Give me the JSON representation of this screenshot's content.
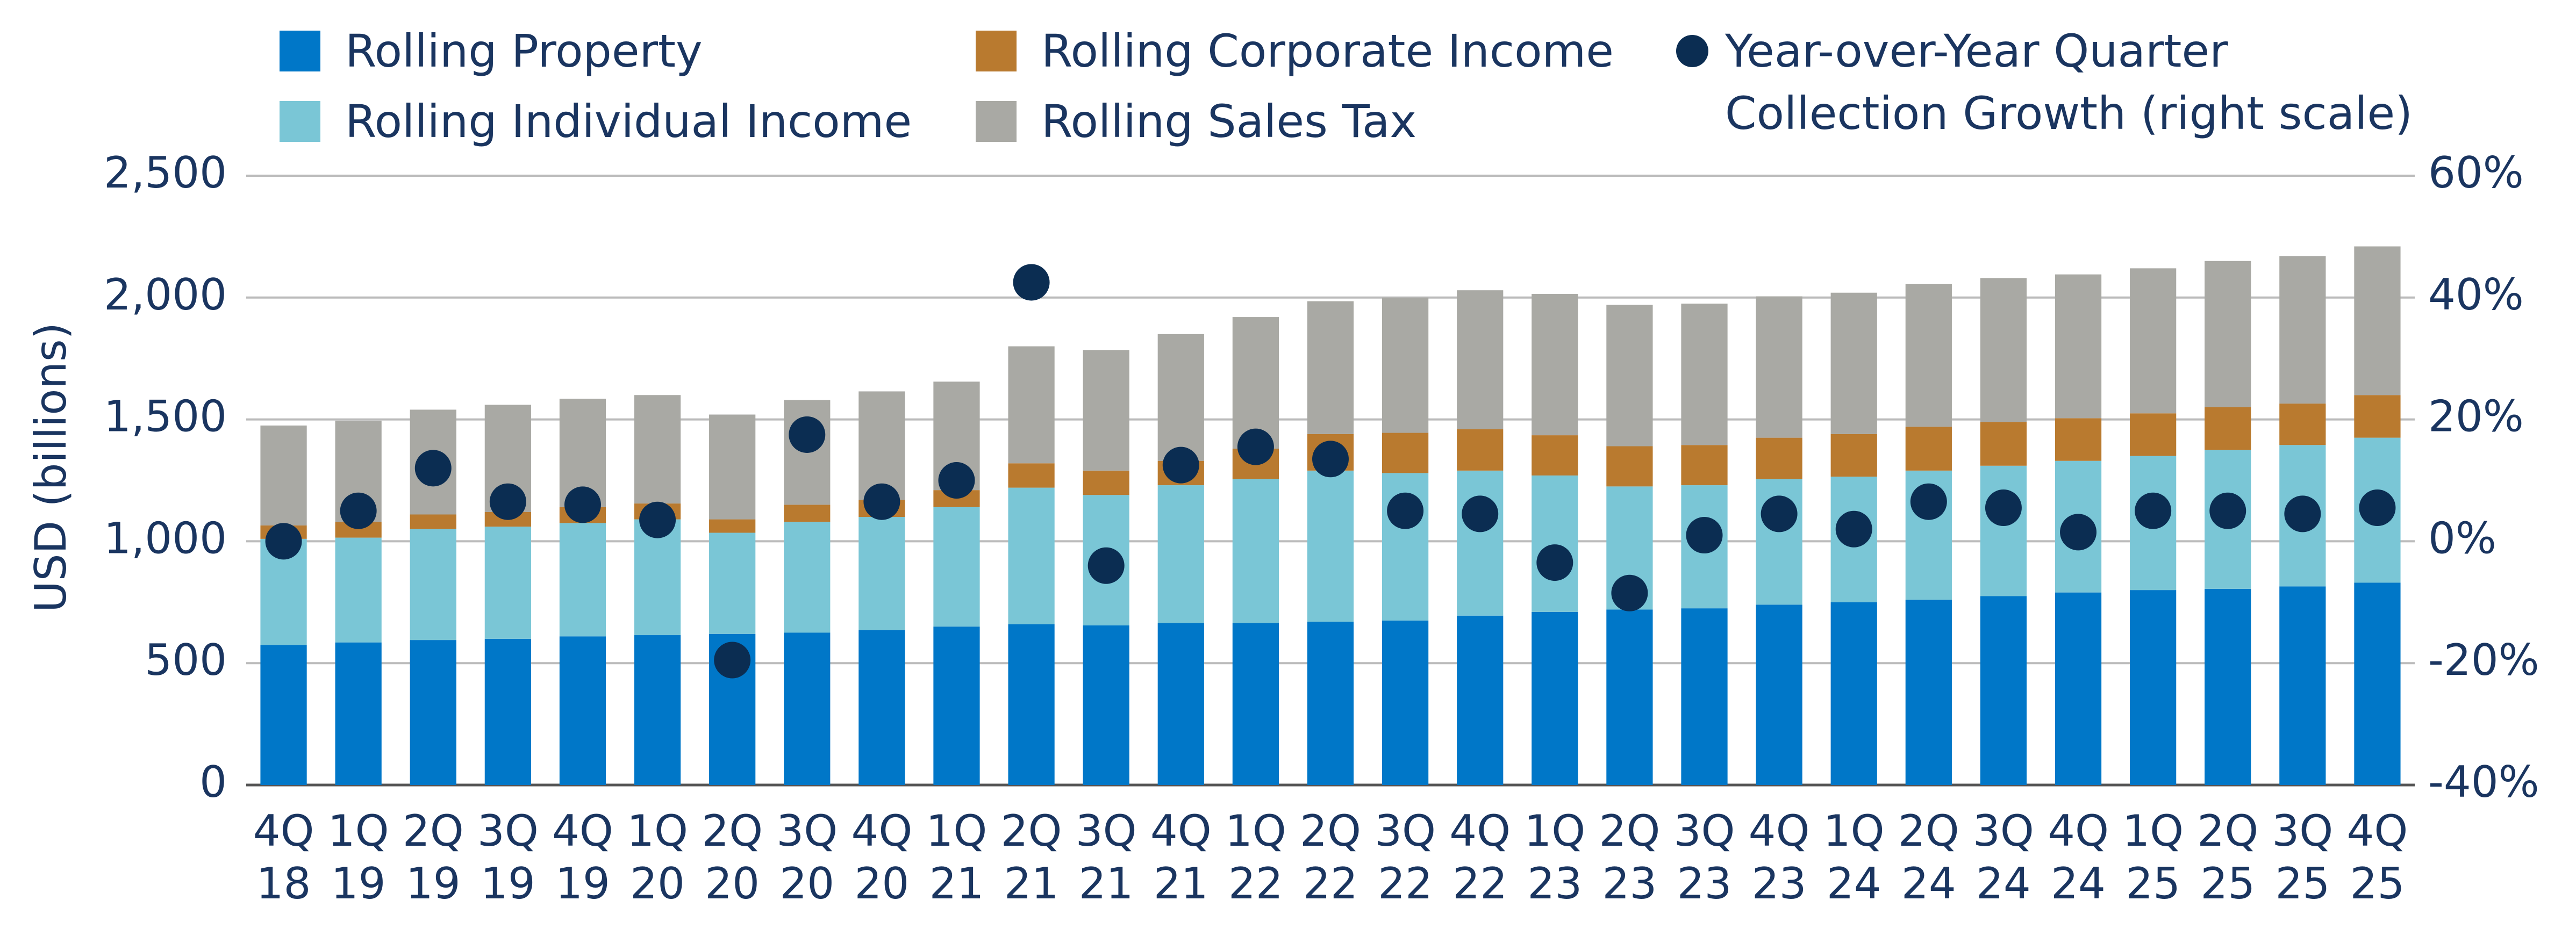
{
  "chart_data": {
    "type": "stacked_bar",
    "y_axis_label": "USD (billions)",
    "categories": [
      [
        "4Q",
        "18"
      ],
      [
        "1Q",
        "19"
      ],
      [
        "2Q",
        "19"
      ],
      [
        "3Q",
        "19"
      ],
      [
        "4Q",
        "19"
      ],
      [
        "1Q",
        "20"
      ],
      [
        "2Q",
        "20"
      ],
      [
        "3Q",
        "20"
      ],
      [
        "4Q",
        "20"
      ],
      [
        "1Q",
        "21"
      ],
      [
        "2Q",
        "21"
      ],
      [
        "3Q",
        "21"
      ],
      [
        "4Q",
        "21"
      ],
      [
        "1Q",
        "22"
      ],
      [
        "2Q",
        "22"
      ],
      [
        "3Q",
        "22"
      ],
      [
        "4Q",
        "22"
      ],
      [
        "1Q",
        "23"
      ],
      [
        "2Q",
        "23"
      ],
      [
        "3Q",
        "23"
      ],
      [
        "4Q",
        "23"
      ],
      [
        "1Q",
        "24"
      ],
      [
        "2Q",
        "24"
      ],
      [
        "3Q",
        "24"
      ],
      [
        "4Q",
        "24"
      ],
      [
        "1Q",
        "25"
      ],
      [
        "2Q",
        "25"
      ],
      [
        "3Q",
        "25"
      ],
      [
        "4Q",
        "25"
      ]
    ],
    "series": [
      {
        "name": "Rolling Property",
        "color": "#0077c8",
        "values": [
          575,
          585,
          595,
          600,
          610,
          615,
          620,
          625,
          635,
          650,
          660,
          655,
          665,
          665,
          670,
          675,
          695,
          710,
          720,
          725,
          740,
          750,
          760,
          775,
          790,
          800,
          805,
          815,
          830
        ]
      },
      {
        "name": "Rolling Individual Income",
        "color": "#7ac6d6",
        "values": [
          435,
          430,
          455,
          460,
          465,
          475,
          415,
          455,
          465,
          490,
          560,
          535,
          565,
          590,
          620,
          605,
          595,
          560,
          505,
          505,
          515,
          515,
          530,
          535,
          540,
          550,
          570,
          580,
          595
        ]
      },
      {
        "name": "Rolling Corporate Income",
        "color": "#b97a2f",
        "values": [
          55,
          65,
          60,
          60,
          65,
          65,
          55,
          70,
          70,
          70,
          100,
          100,
          100,
          125,
          150,
          165,
          170,
          165,
          165,
          165,
          170,
          175,
          180,
          180,
          175,
          175,
          175,
          170,
          175
        ]
      },
      {
        "name": "Rolling Sales Tax",
        "color": "#a9a9a4",
        "values": [
          410,
          415,
          430,
          440,
          445,
          445,
          430,
          430,
          445,
          445,
          480,
          495,
          520,
          540,
          545,
          555,
          570,
          580,
          580,
          580,
          580,
          580,
          585,
          590,
          590,
          595,
          600,
          605,
          610
        ]
      },
      {
        "name": "Year-over-Year Quarter Collection Growth (right scale)",
        "color": "#0b2d52",
        "type": "scatter",
        "axis": "y2",
        "values": [
          0,
          5,
          12,
          6.5,
          6,
          3.5,
          -19.5,
          17.5,
          6.5,
          10,
          42.5,
          -4,
          12.5,
          15.5,
          13.5,
          5,
          4.5,
          -3.5,
          -8.5,
          1,
          4.5,
          2,
          6.5,
          5.5,
          1.5,
          5,
          5,
          4.5,
          5.5
        ]
      }
    ],
    "ylim": [
      0,
      2500
    ],
    "yticks": [
      0,
      500,
      {
        "value": 1000,
        "label": "1,000"
      },
      {
        "value": 1500,
        "label": "1,500"
      },
      {
        "value": 2000,
        "label": "2,000"
      },
      {
        "value": 2500,
        "label": "2,500"
      }
    ],
    "y2lim": [
      -40,
      60
    ],
    "y2ticks": [
      {
        "value": -40,
        "label": "-40%"
      },
      {
        "value": -20,
        "label": "-20%"
      },
      {
        "value": 0,
        "label": "0%"
      },
      {
        "value": 20,
        "label": "20%"
      },
      {
        "value": 40,
        "label": "40%"
      },
      {
        "value": 60,
        "label": "60%"
      }
    ],
    "grid": true
  }
}
